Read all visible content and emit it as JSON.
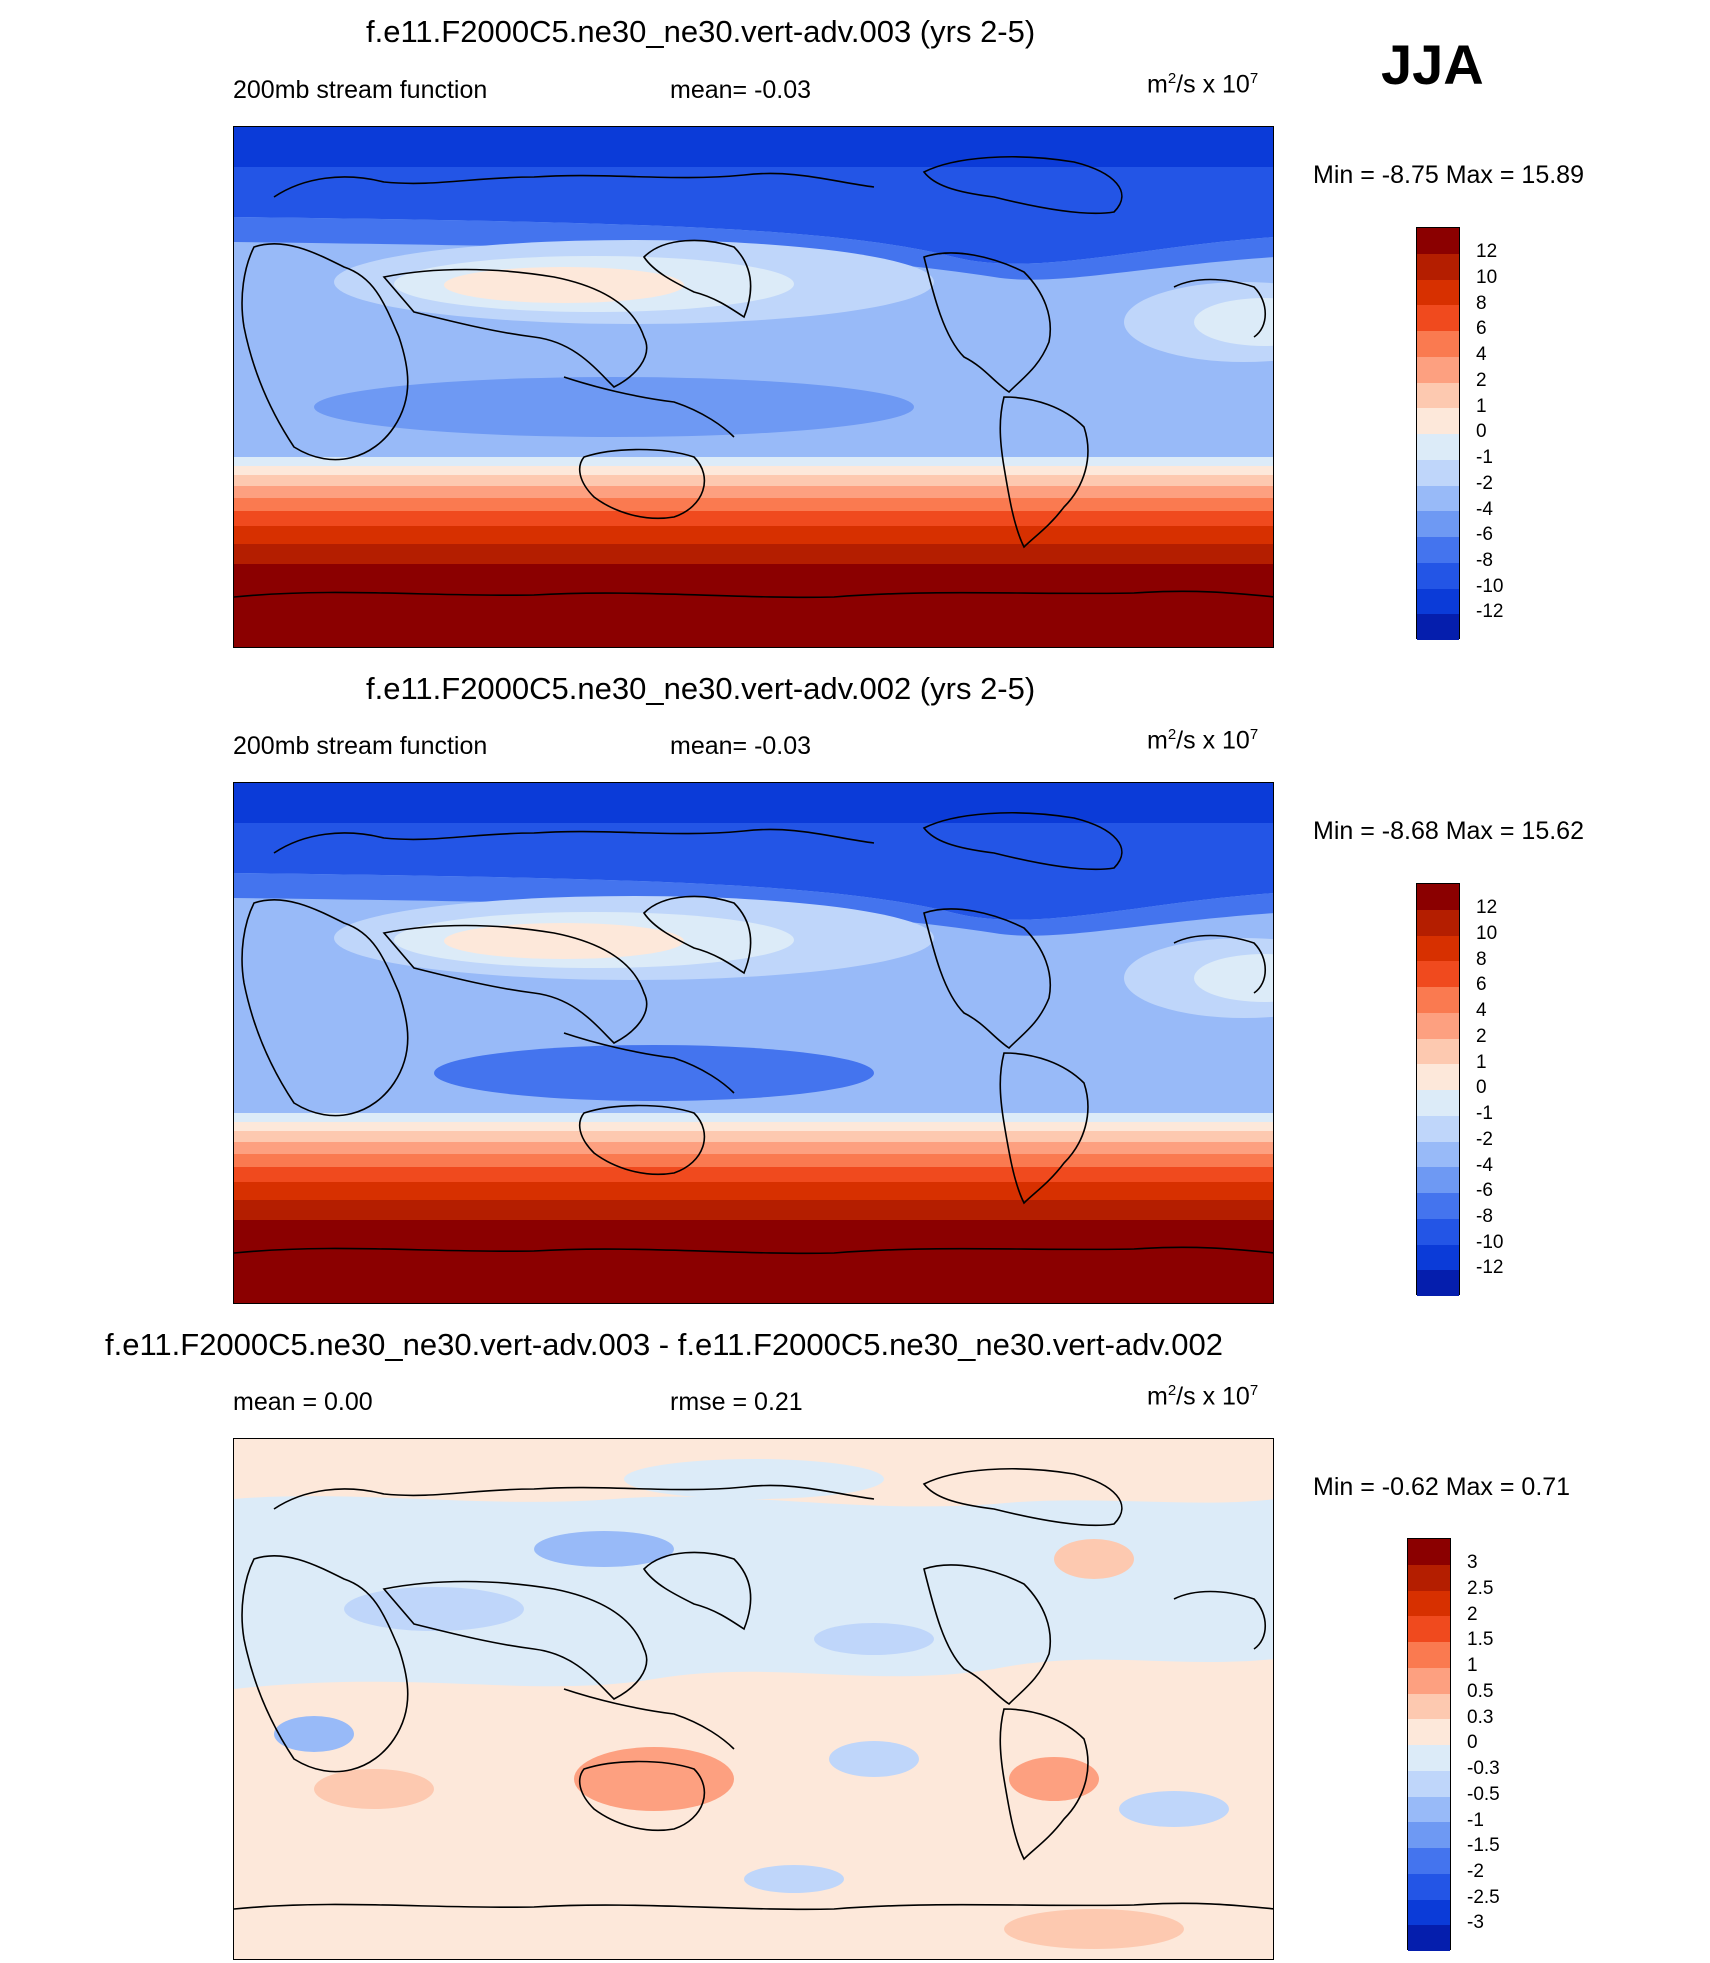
{
  "season": "JJA",
  "panels": [
    {
      "title": "f.e11.F2000C5.ne30_ne30.vert-adv.003 (yrs 2-5)",
      "left_label": "200mb stream function",
      "center_label": "mean=  -0.03",
      "units": {
        "base": "m",
        "exp1": "2",
        "mid": "/s x 10",
        "exp2": "7"
      },
      "minmax": "Min =  -8.75 Max =  15.89",
      "stats": {
        "min": -8.75,
        "max": 15.89,
        "mean": -0.03
      },
      "colorbar": {
        "labels": [
          "12",
          "10",
          "8",
          "6",
          "4",
          "2",
          "1",
          "0",
          "-1",
          "-2",
          "-4",
          "-6",
          "-8",
          "-10",
          "-12"
        ],
        "colors": [
          "#8B0000",
          "#B41E00",
          "#D73000",
          "#F04A1E",
          "#FA7A50",
          "#FDA080",
          "#FDC9B0",
          "#FDE8DA",
          "#DCEBF8",
          "#BFD6FA",
          "#98BAF8",
          "#6E99F3",
          "#4474EE",
          "#2355E6",
          "#0B3BD8",
          "#051EAD"
        ]
      }
    },
    {
      "title": "f.e11.F2000C5.ne30_ne30.vert-adv.002 (yrs 2-5)",
      "left_label": "200mb stream function",
      "center_label": "mean=  -0.03",
      "units": {
        "base": "m",
        "exp1": "2",
        "mid": "/s x 10",
        "exp2": "7"
      },
      "minmax": "Min =  -8.68 Max =  15.62",
      "stats": {
        "min": -8.68,
        "max": 15.62,
        "mean": -0.03
      },
      "colorbar": {
        "labels": [
          "12",
          "10",
          "8",
          "6",
          "4",
          "2",
          "1",
          "0",
          "-1",
          "-2",
          "-4",
          "-6",
          "-8",
          "-10",
          "-12"
        ],
        "colors": [
          "#8B0000",
          "#B41E00",
          "#D73000",
          "#F04A1E",
          "#FA7A50",
          "#FDA080",
          "#FDC9B0",
          "#FDE8DA",
          "#DCEBF8",
          "#BFD6FA",
          "#98BAF8",
          "#6E99F3",
          "#4474EE",
          "#2355E6",
          "#0B3BD8",
          "#051EAD"
        ]
      }
    },
    {
      "title": "f.e11.F2000C5.ne30_ne30.vert-adv.003 - f.e11.F2000C5.ne30_ne30.vert-adv.002",
      "left_label": "mean =   0.00",
      "center_label": "rmse =   0.21",
      "units": {
        "base": "m",
        "exp1": "2",
        "mid": "/s x 10",
        "exp2": "7"
      },
      "minmax": "Min =  -0.62 Max =   0.71",
      "stats": {
        "min": -0.62,
        "max": 0.71,
        "mean": 0.0,
        "rmse": 0.21
      },
      "colorbar": {
        "labels": [
          "3",
          "2.5",
          "2",
          "1.5",
          "1",
          "0.5",
          "0.3",
          "0",
          "-0.3",
          "-0.5",
          "-1",
          "-1.5",
          "-2",
          "-2.5",
          "-3"
        ],
        "colors": [
          "#8B0000",
          "#B41E00",
          "#D73000",
          "#F04A1E",
          "#FA7A50",
          "#FDA080",
          "#FDC9B0",
          "#FDE8DA",
          "#DCEBF8",
          "#BFD6FA",
          "#98BAF8",
          "#6E99F3",
          "#4474EE",
          "#2355E6",
          "#0B3BD8",
          "#051EAD"
        ]
      }
    }
  ]
}
